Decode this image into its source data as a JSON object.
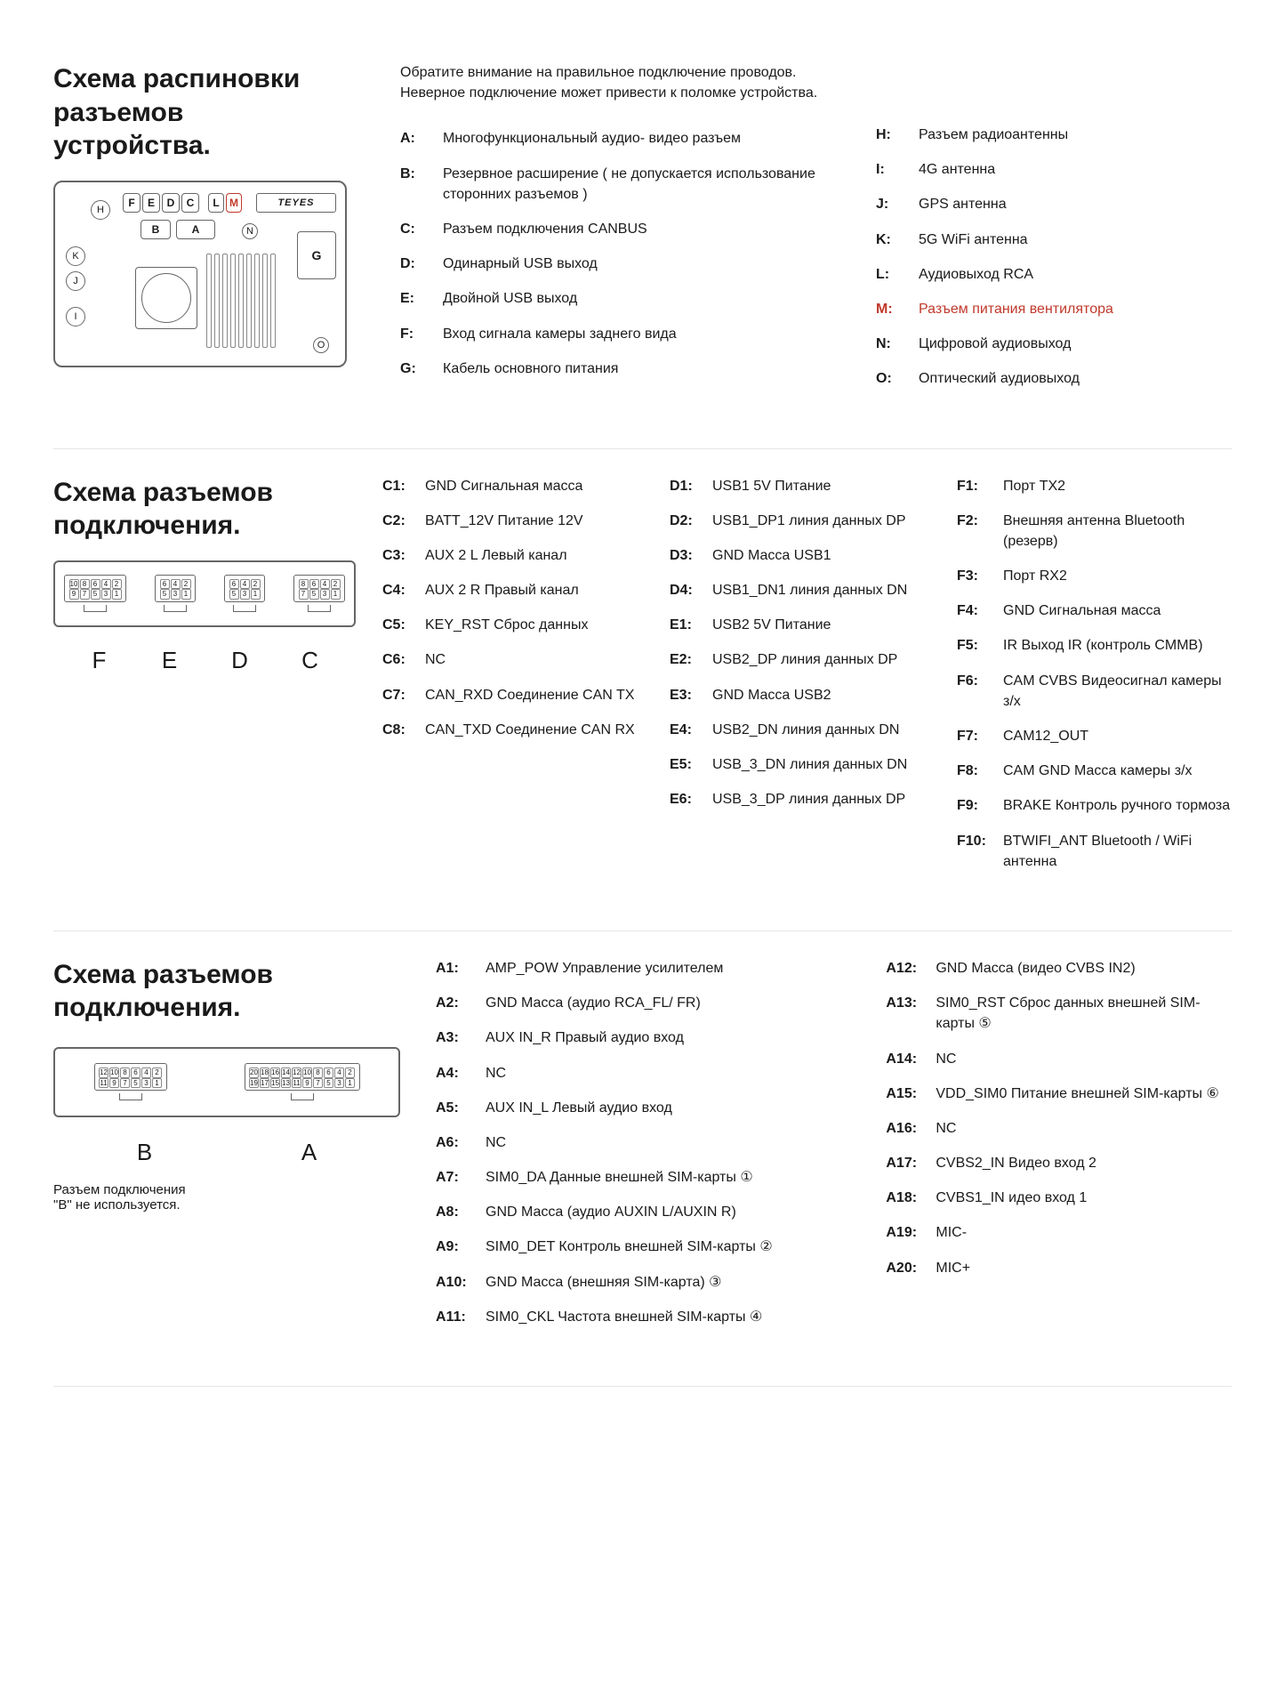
{
  "section1": {
    "title_l1": "Схема распиновки",
    "title_l2": "разъемов устройства.",
    "warn_l1": "Обратите внимание на правильное подключение проводов.",
    "warn_l2": "Неверное подключение может привести к поломке устройства.",
    "brand": "TEYES",
    "diagram_letters": {
      "F": "F",
      "E": "E",
      "D": "D",
      "C": "C",
      "L": "L",
      "M": "M",
      "B": "B",
      "A": "A",
      "H": "H",
      "K": "K",
      "J": "J",
      "I": "I",
      "N": "N",
      "G": "G",
      "O": "O"
    },
    "left_defs": [
      {
        "k": "A:",
        "v": "Многофункциональный аудио- видео разъем"
      },
      {
        "k": "B:",
        "v": "Резервное расширение ( не допускается использование сторонних разъемов )"
      },
      {
        "k": "C:",
        "v": "Разъем подключения CANBUS"
      },
      {
        "k": "D:",
        "v": "Одинарный USB выход"
      },
      {
        "k": "E:",
        "v": "Двойной USB выход"
      },
      {
        "k": "F:",
        "v": "Вход сигнала камеры заднего вида"
      },
      {
        "k": "G:",
        "v": "Кабель основного питания"
      }
    ],
    "right_defs": [
      {
        "k": "H:",
        "v": "Разъем радиоантенны"
      },
      {
        "k": "I:",
        "v": "4G антенна"
      },
      {
        "k": "J:",
        "v": "GPS антенна"
      },
      {
        "k": "K:",
        "v": "5G WiFi антенна"
      },
      {
        "k": "L:",
        "v": "Аудиовыход RCA"
      },
      {
        "k": "M:",
        "v": "Разъем питания вентилятора",
        "hl": true
      },
      {
        "k": "N:",
        "v": "Цифровой аудиовыход"
      },
      {
        "k": "O:",
        "v": "Оптический аудиовыход"
      }
    ]
  },
  "section2": {
    "title_l1": "Схема разъемов",
    "title_l2": "подключения.",
    "connector_labels": [
      "F",
      "E",
      "D",
      "C"
    ],
    "connectors": [
      {
        "top": [
          "10",
          "8",
          "6",
          "4",
          "2"
        ],
        "bot": [
          "9",
          "7",
          "5",
          "3",
          "1"
        ]
      },
      {
        "top": [
          "6",
          "4",
          "2"
        ],
        "bot": [
          "5",
          "3",
          "1"
        ]
      },
      {
        "top": [
          "6",
          "4",
          "2"
        ],
        "bot": [
          "5",
          "3",
          "1"
        ]
      },
      {
        "top": [
          "8",
          "6",
          "4",
          "2"
        ],
        "bot": [
          "7",
          "5",
          "3",
          "1"
        ]
      }
    ],
    "col_c": [
      {
        "k": "C1:",
        "v": "GND Сигнальная масса"
      },
      {
        "k": "C2:",
        "v": "BATT_12V Питание 12V"
      },
      {
        "k": "C3:",
        "v": "AUX 2 L Левый канал"
      },
      {
        "k": "C4:",
        "v": "AUX 2 R Правый канал"
      },
      {
        "k": "C5:",
        "v": "KEY_RST Сброс данных"
      },
      {
        "k": "C6:",
        "v": "NC"
      },
      {
        "k": "C7:",
        "v": "CAN_RXD Соединение CAN TX"
      },
      {
        "k": "C8:",
        "v": "CAN_TXD Соединение CAN RX"
      }
    ],
    "col_d": [
      {
        "k": "D1:",
        "v": "USB1 5V Питание"
      },
      {
        "k": "D2:",
        "v": "USB1_DP1 линия данных DP"
      },
      {
        "k": "D3:",
        "v": "GND Масса USB1"
      },
      {
        "k": "D4:",
        "v": "USB1_DN1 линия данных DN"
      },
      {
        "k": "E1:",
        "v": "USB2 5V Питание"
      },
      {
        "k": "E2:",
        "v": "USB2_DP линия данных DP"
      },
      {
        "k": "E3:",
        "v": "GND Масса USB2"
      },
      {
        "k": "E4:",
        "v": "USB2_DN линия данных DN"
      },
      {
        "k": "E5:",
        "v": "USB_3_DN линия данных DN"
      },
      {
        "k": "E6:",
        "v": "USB_3_DP линия данных DP"
      }
    ],
    "col_f": [
      {
        "k": "F1:",
        "v": "Порт TX2"
      },
      {
        "k": "F2:",
        "v": "Внешняя антенна Bluetooth (резерв)"
      },
      {
        "k": "F3:",
        "v": "Порт RX2"
      },
      {
        "k": "F4:",
        "v": "GND Сигнальная масса"
      },
      {
        "k": "F5:",
        "v": "IR Выход IR (контроль CMMB)"
      },
      {
        "k": "F6:",
        "v": "CAM CVBS Видеосигнал камеры з/х"
      },
      {
        "k": "F7:",
        "v": "CAM12_OUT"
      },
      {
        "k": "F8:",
        "v": "CAM GND Масса камеры з/х"
      },
      {
        "k": "F9:",
        "v": "BRAKE Контроль ручного тормоза"
      },
      {
        "k": "F10:",
        "v": "BTWIFI_ANT Bluetooth / WiFi антенна"
      }
    ]
  },
  "section3": {
    "title_l1": "Схема разъемов",
    "title_l2": "подключения.",
    "connector_labels": [
      "B",
      "A"
    ],
    "conn_b": {
      "top": [
        "12",
        "10",
        "8",
        "6",
        "4",
        "2"
      ],
      "bot": [
        "11",
        "9",
        "7",
        "5",
        "3",
        "1"
      ]
    },
    "conn_a": {
      "top": [
        "20",
        "18",
        "16",
        "14",
        "12",
        "10",
        "8",
        "6",
        "4",
        "2"
      ],
      "bot": [
        "19",
        "17",
        "15",
        "13",
        "11",
        "9",
        "7",
        "5",
        "3",
        "1"
      ]
    },
    "note_l1": "Разъем подключения",
    "note_l2": "\"B\" не используется.",
    "col_a1": [
      {
        "k": "A1:",
        "v": "AMP_POW Управление усилителем"
      },
      {
        "k": "A2:",
        "v": "GND Масса (аудио RCA_FL/ FR)"
      },
      {
        "k": "A3:",
        "v": "AUX IN_R Правый аудио вход"
      },
      {
        "k": "A4:",
        "v": "NC"
      },
      {
        "k": "A5:",
        "v": "AUX IN_L Левый аудио вход"
      },
      {
        "k": "A6:",
        "v": "NC"
      },
      {
        "k": "A7:",
        "v": "SIM0_DA Данные внешней SIM-карты ①"
      },
      {
        "k": "A8:",
        "v": "GND Масса (аудио AUXIN L/AUXIN R)"
      },
      {
        "k": "A9:",
        "v": "SIM0_DET Контроль внешней SIM-карты ②"
      },
      {
        "k": "A10:",
        "v": "GND Масса (внешняя SIM-карта) ③"
      },
      {
        "k": "A11:",
        "v": "SIM0_CKL Частота внешней SIM-карты ④"
      }
    ],
    "col_a2": [
      {
        "k": "A12:",
        "v": "GND Масса (видео CVBS IN2)"
      },
      {
        "k": "A13:",
        "v": "SIM0_RST Сброс данных внешней SIM-карты ⑤"
      },
      {
        "k": "A14:",
        "v": "NC"
      },
      {
        "k": "A15:",
        "v": "VDD_SIM0 Питание внешней SIM-карты ⑥"
      },
      {
        "k": "A16:",
        "v": "NC"
      },
      {
        "k": "A17:",
        "v": "CVBS2_IN Видео вход 2"
      },
      {
        "k": "A18:",
        "v": "CVBS1_IN идео вход 1"
      },
      {
        "k": "A19:",
        "v": "MIC-"
      },
      {
        "k": "A20:",
        "v": "MIC+"
      }
    ]
  },
  "colors": {
    "text": "#1a1a1a",
    "border": "#666666",
    "divider": "#e5e5e5",
    "highlight": "#c0392b"
  }
}
